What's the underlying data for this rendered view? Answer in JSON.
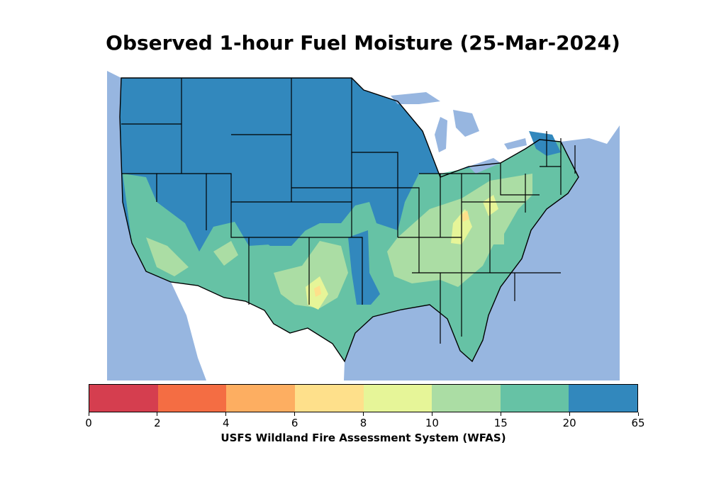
{
  "title": "Observed 1-hour Fuel Moisture (25-Mar-2024)",
  "colors": {
    "water": "#97b6e0",
    "land_outside": "#ffffff",
    "border": "#000000"
  },
  "colorbar": {
    "caption": "USFS Wildland Fire Assessment System (WFAS)",
    "tick_labels": [
      "0",
      "2",
      "4",
      "6",
      "8",
      "10",
      "15",
      "20",
      "65"
    ],
    "bins": [
      {
        "range": "0-2",
        "color": "#d53e4f"
      },
      {
        "range": "2-4",
        "color": "#f46d43"
      },
      {
        "range": "4-6",
        "color": "#fdae61"
      },
      {
        "range": "6-8",
        "color": "#fee08b"
      },
      {
        "range": "8-10",
        "color": "#e6f598"
      },
      {
        "range": "10-15",
        "color": "#abdda4"
      },
      {
        "range": "15-20",
        "color": "#66c2a5"
      },
      {
        "range": "20-65",
        "color": "#3288bd"
      }
    ]
  }
}
